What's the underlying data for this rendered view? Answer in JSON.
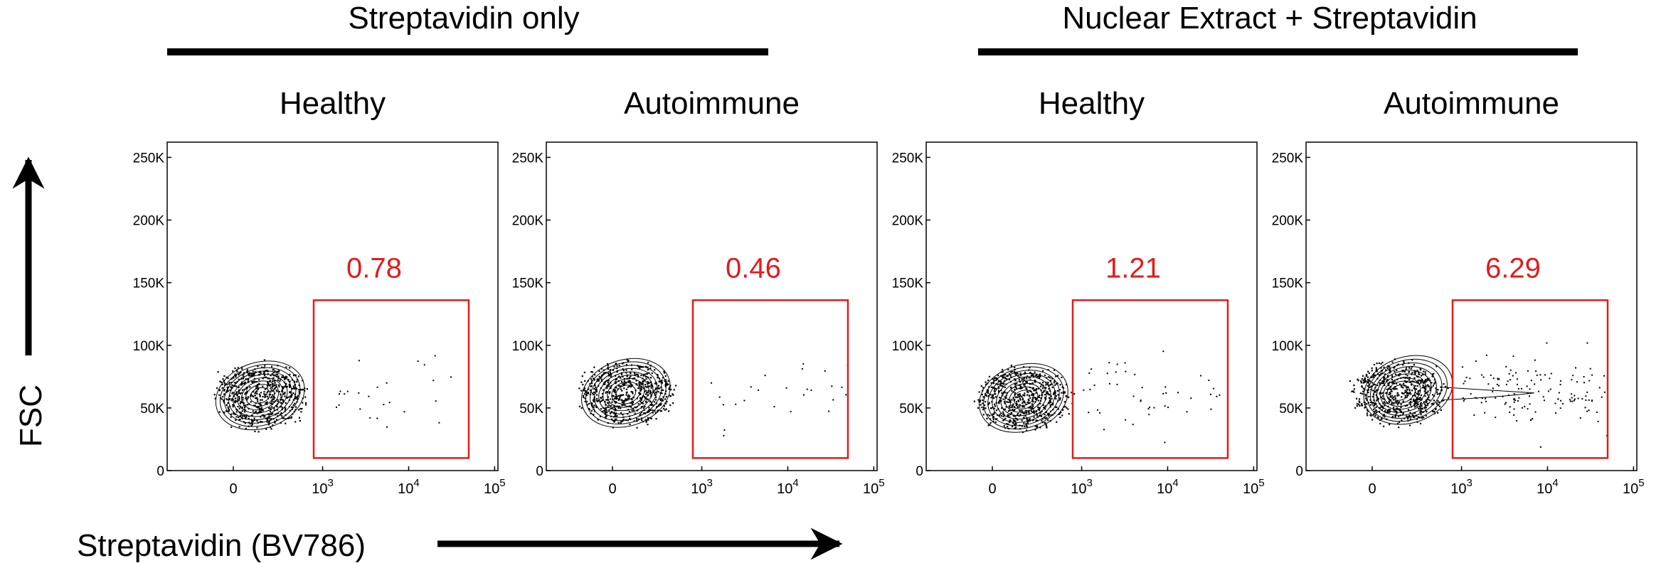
{
  "groups": [
    {
      "label": "Streptavidin only"
    },
    {
      "label": "Nuclear Extract + Streptavidin"
    }
  ],
  "y_axis_label": "FSC",
  "x_axis_label": "Streptavidin (BV786)",
  "colors": {
    "gate": "#e41a1c",
    "contour": "#000000",
    "text": "#000000"
  },
  "chart_data": [
    {
      "type": "scatter",
      "title": "Healthy",
      "group": "Streptavidin only",
      "xlabel": "Streptavidin (BV786)",
      "ylabel": "FSC",
      "x_scale": "biexponential",
      "x_ticks": [
        "0",
        "10^3",
        "10^4",
        "10^5"
      ],
      "y_ticks": [
        "0",
        "50K",
        "100K",
        "150K",
        "200K",
        "250K"
      ],
      "ylim": [
        0,
        262144
      ],
      "population_center": {
        "x": 300,
        "y": 60000
      },
      "gate": {
        "label": "0.78",
        "x_range": [
          900,
          50000
        ],
        "y_range": [
          10000,
          136000
        ]
      }
    },
    {
      "type": "scatter",
      "title": "Autoimmune",
      "group": "Streptavidin only",
      "xlabel": "Streptavidin (BV786)",
      "ylabel": "FSC",
      "x_scale": "biexponential",
      "x_ticks": [
        "0",
        "10^3",
        "10^4",
        "10^5"
      ],
      "y_ticks": [
        "0",
        "50K",
        "100K",
        "150K",
        "200K",
        "250K"
      ],
      "ylim": [
        0,
        262144
      ],
      "population_center": {
        "x": 150,
        "y": 62000
      },
      "gate": {
        "label": "0.46",
        "x_range": [
          900,
          50000
        ],
        "y_range": [
          10000,
          136000
        ]
      }
    },
    {
      "type": "scatter",
      "title": "Healthy",
      "group": "Nuclear Extract + Streptavidin",
      "xlabel": "Streptavidin (BV786)",
      "ylabel": "FSC",
      "x_scale": "biexponential",
      "x_ticks": [
        "0",
        "10^3",
        "10^4",
        "10^5"
      ],
      "y_ticks": [
        "0",
        "50K",
        "100K",
        "150K",
        "200K",
        "250K"
      ],
      "ylim": [
        0,
        262144
      ],
      "population_center": {
        "x": 350,
        "y": 58000
      },
      "gate": {
        "label": "1.21",
        "x_range": [
          900,
          50000
        ],
        "y_range": [
          10000,
          136000
        ]
      }
    },
    {
      "type": "scatter",
      "title": "Autoimmune",
      "group": "Nuclear Extract + Streptavidin",
      "xlabel": "Streptavidin (BV786)",
      "ylabel": "FSC",
      "x_scale": "biexponential",
      "x_ticks": [
        "0",
        "10^3",
        "10^4",
        "10^5"
      ],
      "y_ticks": [
        "0",
        "50K",
        "100K",
        "150K",
        "200K",
        "250K"
      ],
      "ylim": [
        0,
        262144
      ],
      "population_center": {
        "x": 300,
        "y": 62000
      },
      "gate": {
        "label": "6.29",
        "x_range": [
          900,
          50000
        ],
        "y_range": [
          10000,
          136000
        ]
      }
    }
  ]
}
